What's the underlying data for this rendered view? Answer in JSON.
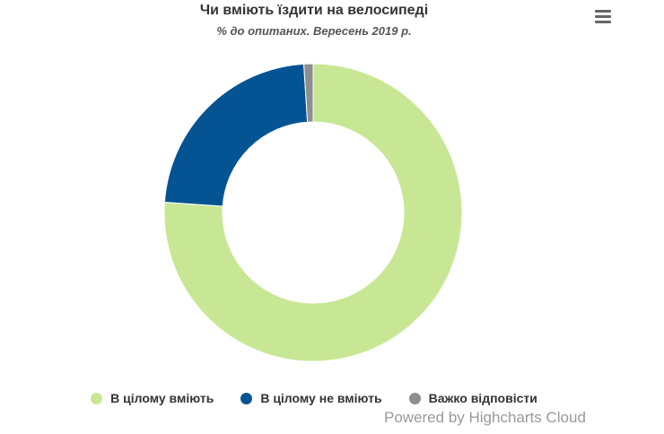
{
  "title": "Чи вміють їздити на велосипеді",
  "subtitle": "% до опитаних. Вересень 2019 р.",
  "menu_icon": "hamburger-menu-icon",
  "credits": "Powered by Highcharts Cloud",
  "chart_data": {
    "type": "pie",
    "variant": "donut",
    "title": "Чи вміють їздити на велосипеді",
    "subtitle": "% до опитаних. Вересень 2019 р.",
    "legend_placement": "bottom-center",
    "series": [
      {
        "name": "В цілому вміють",
        "value": 76.1,
        "color": "#c8e794"
      },
      {
        "name": "В цілому не вміють",
        "value": 22.9,
        "color": "#045494"
      },
      {
        "name": "Важко відповісти",
        "value": 1.0,
        "color": "#8e8e8e"
      }
    ]
  }
}
